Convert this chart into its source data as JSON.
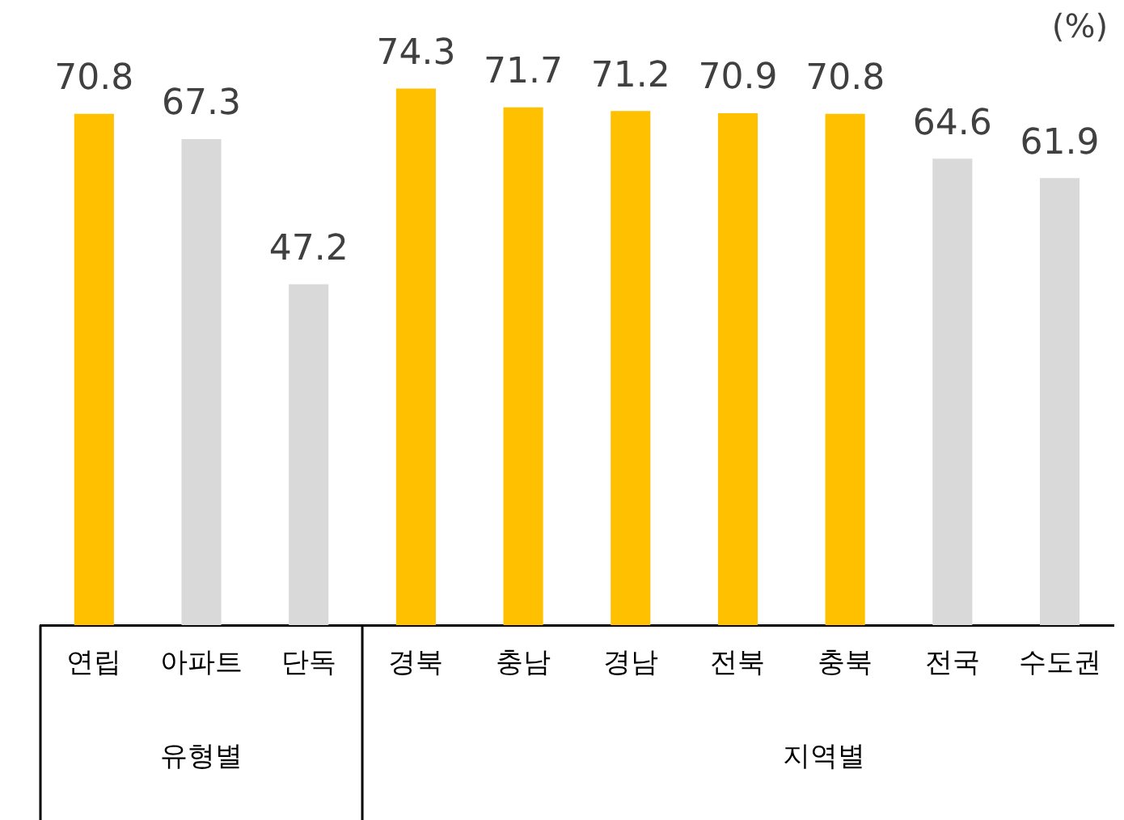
{
  "chart_data": {
    "type": "bar",
    "ylabel": "(%)",
    "categories": [
      "연립",
      "아파트",
      "단독",
      "경북",
      "충남",
      "경남",
      "전북",
      "충북",
      "전국",
      "수도권"
    ],
    "values": [
      70.8,
      67.3,
      47.2,
      74.3,
      71.7,
      71.2,
      70.9,
      70.8,
      64.6,
      61.9
    ],
    "colors": [
      "#ffc000",
      "#d9d9d9",
      "#d9d9d9",
      "#ffc000",
      "#ffc000",
      "#ffc000",
      "#ffc000",
      "#ffc000",
      "#d9d9d9",
      "#d9d9d9"
    ],
    "data_labels": true,
    "grid": false,
    "legend": false,
    "annotations": [
      "유형별",
      "지역별"
    ]
  }
}
